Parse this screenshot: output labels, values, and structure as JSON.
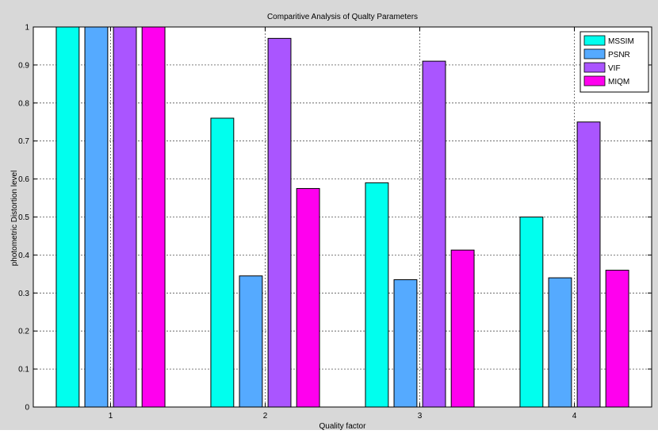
{
  "chart_data": {
    "type": "bar",
    "title": "Comparitive Analysis of Qualty Parameters",
    "xlabel": "Quality factor",
    "ylabel": "photometric Distortion level",
    "categories": [
      "1",
      "2",
      "3",
      "4"
    ],
    "ylim": [
      0,
      1
    ],
    "yticks": [
      "0",
      "0.1",
      "0.2",
      "0.3",
      "0.4",
      "0.5",
      "0.6",
      "0.7",
      "0.8",
      "0.9",
      "1"
    ],
    "grid": true,
    "legend_position": "top-right",
    "series": [
      {
        "name": "MSSIM",
        "color": "#00ffee",
        "values": [
          1.0,
          0.76,
          0.59,
          0.5
        ]
      },
      {
        "name": "PSNR",
        "color": "#55aaff",
        "values": [
          1.0,
          0.345,
          0.335,
          0.34
        ]
      },
      {
        "name": "VIF",
        "color": "#aa55ff",
        "values": [
          1.0,
          0.97,
          0.91,
          0.75
        ]
      },
      {
        "name": "MIQM",
        "color": "#ff00ee",
        "values": [
          1.0,
          0.575,
          0.413,
          0.36
        ]
      }
    ]
  }
}
